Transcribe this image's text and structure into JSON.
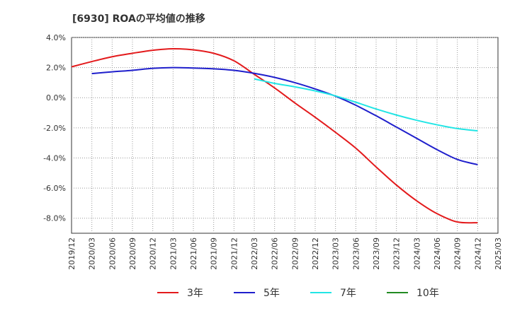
{
  "chart_data": {
    "type": "line",
    "title": "[6930]  ROAの平均値の推移",
    "xlabel": "",
    "ylabel": "",
    "ylim": [
      -9.0,
      4.0
    ],
    "yticks": [
      4,
      2,
      0,
      -2,
      -4,
      -6,
      -8
    ],
    "ytick_labels": [
      "4.0%",
      "2.0%",
      "0.0%",
      "-2.0%",
      "-4.0%",
      "-6.0%",
      "-8.0%"
    ],
    "grid": true,
    "legend_position": "bottom",
    "categories": [
      "2019/12",
      "2020/03",
      "2020/06",
      "2020/09",
      "2020/12",
      "2021/03",
      "2021/06",
      "2021/09",
      "2021/12",
      "2022/03",
      "2022/06",
      "2022/09",
      "2022/12",
      "2023/03",
      "2023/06",
      "2023/09",
      "2023/12",
      "2024/03",
      "2024/06",
      "2024/09",
      "2024/12",
      "2025/03"
    ],
    "series": [
      {
        "name": "3年",
        "color": "#e31a1c",
        "values": [
          2.05,
          2.4,
          2.72,
          2.95,
          3.15,
          3.25,
          3.18,
          2.95,
          2.45,
          1.55,
          0.65,
          -0.35,
          -1.3,
          -2.3,
          -3.35,
          -4.6,
          -5.8,
          -6.85,
          -7.7,
          -8.25,
          -8.3,
          null
        ]
      },
      {
        "name": "5年",
        "color": "#1f1fcc",
        "values": [
          null,
          1.6,
          1.72,
          1.82,
          1.95,
          2.0,
          1.97,
          1.92,
          1.82,
          1.62,
          1.35,
          1.0,
          0.58,
          0.1,
          -0.5,
          -1.2,
          -1.95,
          -2.7,
          -3.45,
          -4.1,
          -4.45,
          null
        ]
      },
      {
        "name": "7年",
        "color": "#22e5e5",
        "values": [
          null,
          null,
          null,
          null,
          null,
          null,
          null,
          null,
          null,
          1.25,
          0.95,
          0.72,
          0.45,
          0.12,
          -0.3,
          -0.75,
          -1.15,
          -1.5,
          -1.8,
          -2.05,
          -2.2,
          null
        ]
      },
      {
        "name": "10年",
        "color": "#228b22",
        "values": [
          null,
          null,
          null,
          null,
          null,
          null,
          null,
          null,
          null,
          null,
          null,
          null,
          null,
          null,
          null,
          null,
          null,
          null,
          null,
          null,
          null,
          null
        ]
      }
    ]
  }
}
